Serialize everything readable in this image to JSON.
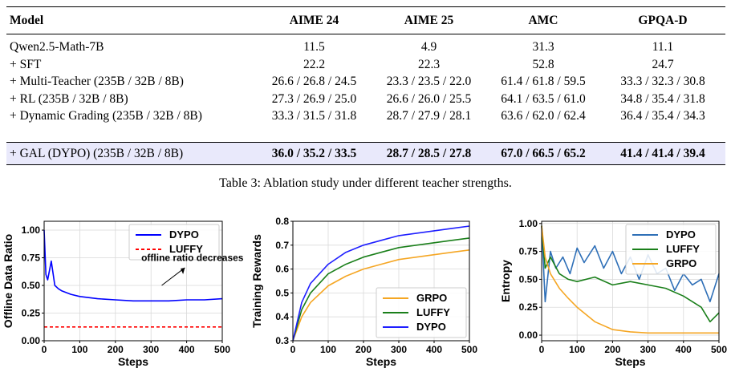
{
  "table": {
    "headers": [
      "Model",
      "AIME 24",
      "AIME 25",
      "AMC",
      "GPQA-D"
    ],
    "rows": [
      {
        "model": "Qwen2.5-Math-7B",
        "values": [
          "11.5",
          "4.9",
          "31.3",
          "11.1"
        ]
      },
      {
        "model": "+ SFT",
        "values": [
          "22.2",
          "22.3",
          "52.8",
          "24.7"
        ]
      },
      {
        "model": "+ Multi-Teacher (235B / 32B / 8B)",
        "values": [
          "26.6 / 26.8 / 24.5",
          "23.3 / 23.5 / 22.0",
          "61.4 / 61.8 / 59.5",
          "33.3 / 32.3 / 30.8"
        ]
      },
      {
        "model": "+ RL (235B / 32B / 8B)",
        "values": [
          "27.3 / 26.9 / 25.0",
          "26.6 / 26.0 / 25.5",
          "64.1 / 63.5 / 61.0",
          "34.8 / 35.4 / 31.8"
        ]
      },
      {
        "model": "+ Dynamic Grading (235B / 32B / 8B)",
        "values": [
          "33.3 / 31.5 / 31.8",
          "28.7 / 27.9 / 28.1",
          "63.6 / 62.0 / 62.4",
          "36.4 / 35.4 / 34.3"
        ]
      }
    ],
    "highlight_row": {
      "model": "+ GAL (DYPO) (235B / 32B / 8B)",
      "values": [
        "36.0 / 35.2 / 33.5",
        "28.7 / 28.5 / 27.8",
        "67.0 / 66.5 / 65.2",
        "41.4 / 41.4 / 39.4"
      ]
    },
    "highlight_color": "#e9e9fb",
    "caption": "Table 3: Ablation study under different teacher strengths."
  },
  "chart_data": [
    {
      "type": "line",
      "xlabel": "Steps",
      "ylabel": "Offline Data Ratio",
      "xlim": [
        0,
        500
      ],
      "ylim": [
        0.0,
        1.08
      ],
      "xticks": [
        "0",
        "100",
        "200",
        "300",
        "400",
        "500"
      ],
      "yticks": [
        "0.00",
        "0.25",
        "0.50",
        "0.75",
        "1.00"
      ],
      "grid": true,
      "legend_position": "top-right",
      "annotation": "offline ratio decreases",
      "series": [
        {
          "name": "DYPO",
          "color": "#0000ff",
          "style": "solid",
          "x": [
            0,
            5,
            10,
            20,
            30,
            40,
            50,
            75,
            100,
            150,
            200,
            250,
            300,
            350,
            400,
            450,
            500
          ],
          "y": [
            1.0,
            0.6,
            0.55,
            0.72,
            0.5,
            0.47,
            0.45,
            0.42,
            0.4,
            0.38,
            0.37,
            0.36,
            0.36,
            0.36,
            0.37,
            0.37,
            0.38
          ]
        },
        {
          "name": "LUFFY",
          "color": "#ff0000",
          "style": "dashed",
          "x": [
            0,
            500
          ],
          "y": [
            0.125,
            0.125
          ]
        }
      ]
    },
    {
      "type": "line",
      "xlabel": "Steps",
      "ylabel": "Training Rewards",
      "xlim": [
        0,
        500
      ],
      "ylim": [
        0.3,
        0.8
      ],
      "xticks": [
        "0",
        "100",
        "200",
        "300",
        "400",
        "500"
      ],
      "yticks": [
        "0.3",
        "0.4",
        "0.5",
        "0.6",
        "0.7",
        "0.8"
      ],
      "grid": true,
      "legend_position": "bottom-right",
      "series": [
        {
          "name": "GRPO",
          "color": "#f5a623",
          "x": [
            0,
            25,
            50,
            100,
            150,
            200,
            250,
            300,
            350,
            400,
            450,
            500
          ],
          "y": [
            0.3,
            0.4,
            0.46,
            0.53,
            0.57,
            0.6,
            0.62,
            0.64,
            0.65,
            0.66,
            0.67,
            0.68
          ]
        },
        {
          "name": "LUFFY",
          "color": "#1a7f1a",
          "x": [
            0,
            25,
            50,
            100,
            150,
            200,
            250,
            300,
            350,
            400,
            450,
            500
          ],
          "y": [
            0.3,
            0.43,
            0.5,
            0.58,
            0.62,
            0.65,
            0.67,
            0.69,
            0.7,
            0.71,
            0.72,
            0.73
          ]
        },
        {
          "name": "DYPO",
          "color": "#1f1fff",
          "x": [
            0,
            25,
            50,
            100,
            150,
            200,
            250,
            300,
            350,
            400,
            450,
            500
          ],
          "y": [
            0.3,
            0.46,
            0.54,
            0.62,
            0.67,
            0.7,
            0.72,
            0.74,
            0.75,
            0.76,
            0.77,
            0.78
          ]
        }
      ]
    },
    {
      "type": "line",
      "xlabel": "Steps",
      "ylabel": "Entropy",
      "xlim": [
        0,
        500
      ],
      "ylim": [
        -0.05,
        1.02
      ],
      "xticks": [
        "0",
        "100",
        "200",
        "300",
        "400",
        "500"
      ],
      "yticks": [
        "0.00",
        "0.25",
        "0.50",
        "0.75",
        "1.00"
      ],
      "grid": true,
      "legend_position": "top-right",
      "series": [
        {
          "name": "DYPO",
          "color": "#2e6fb7",
          "x": [
            0,
            10,
            25,
            40,
            60,
            80,
            100,
            120,
            150,
            175,
            200,
            225,
            250,
            275,
            300,
            325,
            350,
            375,
            400,
            425,
            450,
            475,
            500
          ],
          "y": [
            0.98,
            0.3,
            0.75,
            0.6,
            0.7,
            0.55,
            0.78,
            0.65,
            0.8,
            0.6,
            0.75,
            0.55,
            0.7,
            0.5,
            0.72,
            0.55,
            0.6,
            0.4,
            0.55,
            0.45,
            0.5,
            0.3,
            0.55
          ]
        },
        {
          "name": "LUFFY",
          "color": "#1a7f1a",
          "x": [
            0,
            10,
            25,
            50,
            75,
            100,
            150,
            200,
            250,
            300,
            350,
            400,
            450,
            475,
            500
          ],
          "y": [
            0.98,
            0.6,
            0.7,
            0.55,
            0.5,
            0.48,
            0.52,
            0.45,
            0.48,
            0.45,
            0.42,
            0.35,
            0.25,
            0.12,
            0.2
          ]
        },
        {
          "name": "GRPO",
          "color": "#f5a623",
          "x": [
            0,
            10,
            25,
            50,
            75,
            100,
            150,
            200,
            250,
            300,
            350,
            400,
            450,
            500
          ],
          "y": [
            0.98,
            0.7,
            0.55,
            0.42,
            0.33,
            0.25,
            0.12,
            0.05,
            0.03,
            0.02,
            0.02,
            0.02,
            0.02,
            0.02
          ]
        }
      ]
    }
  ]
}
